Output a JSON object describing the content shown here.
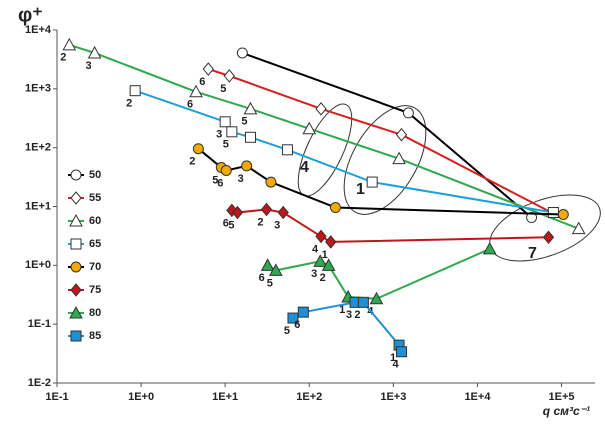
{
  "chart_data": {
    "type": "line",
    "title": "φ⁺",
    "x_label": "q см³с⁻¹",
    "log_x": true,
    "log_y": true,
    "xlim": [
      0.1,
      250000
    ],
    "ylim": [
      0.01,
      10000
    ],
    "xticks": [
      {
        "value": 0.1,
        "label": "1E-1"
      },
      {
        "value": 1,
        "label": "1E+0"
      },
      {
        "value": 10,
        "label": "1E+1"
      },
      {
        "value": 100,
        "label": "1E+2"
      },
      {
        "value": 1000,
        "label": "1E+3"
      },
      {
        "value": 10000,
        "label": "1E+4"
      },
      {
        "value": 100000,
        "label": "1E+5"
      }
    ],
    "yticks": [
      {
        "value": 0.01,
        "label": "1E-2"
      },
      {
        "value": 0.1,
        "label": "1E-1"
      },
      {
        "value": 1,
        "label": "1E+0"
      },
      {
        "value": 10,
        "label": "1E+1"
      },
      {
        "value": 100,
        "label": "1E+2"
      },
      {
        "value": 1000,
        "label": "1E+3"
      },
      {
        "value": 10000,
        "label": "1E+4"
      }
    ],
    "annotations": [
      "4",
      "1",
      "7"
    ],
    "series": [
      {
        "name": "50",
        "marker": "circle",
        "color": "#ffffff",
        "line_color": "#000000",
        "x": [
          16,
          1510,
          44000
        ],
        "values": [
          4070,
          390,
          6.5
        ],
        "point_labels": [
          null,
          null,
          null
        ]
      },
      {
        "name": "55",
        "marker": "diamond",
        "color": "#ffffff",
        "line_color": "#d42020",
        "x": [
          6.3,
          11.2,
          138,
          1250,
          80000
        ],
        "values": [
          2170,
          1660,
          457,
          166,
          7.6
        ],
        "point_labels": [
          "6",
          "5",
          null,
          null,
          null
        ]
      },
      {
        "name": "60",
        "marker": "triangle",
        "color": "#ffffff",
        "line_color": "#2fa84f",
        "x": [
          0.14,
          0.28,
          4.5,
          20,
          100,
          1170,
          160000
        ],
        "values": [
          5600,
          4070,
          890,
          457,
          210,
          65,
          4.2
        ],
        "point_labels": [
          "2",
          "3",
          "6",
          "5",
          null,
          null,
          null
        ]
      },
      {
        "name": "65",
        "marker": "square",
        "color": "#ffffff",
        "line_color": "#1ea0dc",
        "x": [
          0.85,
          10,
          12,
          20,
          55,
          560,
          80000
        ],
        "values": [
          930,
          275,
          186,
          150,
          92,
          26,
          7.9
        ],
        "point_labels": [
          "2",
          "3",
          "5",
          null,
          null,
          null,
          null
        ]
      },
      {
        "name": "70",
        "marker": "circle",
        "color": "#f2a900",
        "line_color": "#000000",
        "x": [
          4.8,
          9,
          10.3,
          18,
          35,
          205,
          105000
        ],
        "values": [
          96,
          46,
          41,
          49,
          26,
          9.6,
          7.3
        ],
        "point_labels": [
          "2",
          "5",
          "6",
          "3",
          null,
          null,
          null
        ]
      },
      {
        "name": "75",
        "marker": "diamond",
        "color": "#c0161b",
        "line_color": "#c0161b",
        "x": [
          12,
          14,
          31,
          49,
          138,
          180,
          70000
        ],
        "values": [
          8.6,
          7.9,
          8.9,
          7.9,
          3.1,
          2.5,
          3.0
        ],
        "point_labels": [
          "6",
          "5",
          "2",
          "3",
          "4",
          "1",
          null
        ]
      },
      {
        "name": "80",
        "marker": "triangle",
        "color": "#2fa84f",
        "line_color": "#2fa84f",
        "x": [
          32,
          40,
          135,
          170,
          290,
          630,
          14000
        ],
        "values": [
          1.0,
          0.82,
          1.17,
          1.0,
          0.29,
          0.27,
          1.9
        ],
        "point_labels": [
          "6",
          "5",
          "3",
          "2",
          "1",
          "4",
          null
        ]
      },
      {
        "name": "85",
        "marker": "square",
        "color": "#1e90d6",
        "line_color": "#1e90d6",
        "x": [
          64,
          85,
          350,
          440,
          1170,
          1250
        ],
        "values": [
          0.127,
          0.16,
          0.235,
          0.235,
          0.044,
          0.034
        ],
        "point_labels": [
          "5",
          "6",
          "3",
          "2",
          "1",
          "4"
        ]
      }
    ]
  }
}
